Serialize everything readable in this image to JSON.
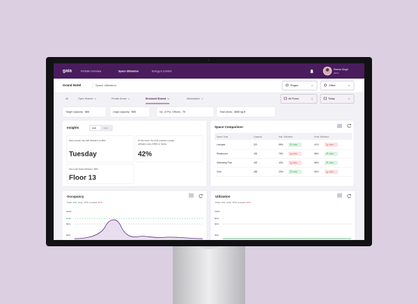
{
  "nav": {
    "logo": "gaia",
    "items": [
      "Portfolio Overview",
      "Space Utilisation",
      "Energy & Comfort"
    ],
    "active": 1,
    "user": {
      "name": "Reena Singh",
      "role": "Admin"
    }
  },
  "header": {
    "title": "Grand Hotel",
    "subtitle": "Space Utilisation",
    "filters": [
      "Region",
      "Office"
    ]
  },
  "tabs": {
    "items": [
      "All",
      "Open Shared",
      "Private Areas",
      "Enclosed Shared",
      "Workstation"
    ],
    "active": 3,
    "filters": [
      "All Floors",
      "Today"
    ]
  },
  "stats": [
    {
      "label": "Target capacity:",
      "value": "600"
    },
    {
      "label": "Legal capacity:",
      "value": "900"
    },
    {
      "label": "No. of Pvt. Offices:",
      "value": "70"
    },
    {
      "label": "Total areas:",
      "value": "4000 sq ft"
    }
  ],
  "insights": {
    "title": "Insights",
    "toggle": [
      "High",
      "Low"
    ],
    "cards": [
      {
        "text_lines": [
          "Most popular day with utilization at 80%"
        ],
        "value": "Tuesday"
      },
      {
        "text_lines": [
          "Of this week, the Club reached a target",
          "utilization rate of 80% or higher."
        ],
        "value": "42%"
      },
      {
        "text_lines": [
          "Floor with Peak utilization: 98%"
        ],
        "value": "Floor 13"
      }
    ]
  },
  "space_comparison": {
    "title": "Space Comparison",
    "columns": [
      "Space Type",
      "Capacity",
      "Avg. Utilization",
      "Peak Utilization"
    ],
    "rows": [
      {
        "space": "Lounges",
        "capacity": "321",
        "avg": "56%",
        "avg_change": "3.5%",
        "avg_trend": "up",
        "peak": "41%",
        "peak_change": "3.5%",
        "peak_trend": "down"
      },
      {
        "space": "Restaurant",
        "capacity": "432",
        "avg": "76%",
        "avg_change": "3.5%",
        "avg_trend": "down",
        "peak": "56%",
        "peak_change": "4.5%",
        "peak_trend": "up"
      },
      {
        "space": "Swimming Pool",
        "capacity": "432",
        "avg": "43%",
        "avg_change": "3.5%",
        "avg_trend": "down",
        "peak": "56%",
        "peak_change": "4.5%",
        "peak_trend": "up"
      },
      {
        "space": "Club",
        "capacity": "456",
        "avg": "23%",
        "avg_change": "4.5%",
        "avg_trend": "up",
        "peak": "94%",
        "peak_change": "3.5%",
        "peak_trend": "down"
      }
    ]
  },
  "panels": [
    {
      "title": "Occupancy",
      "summary": {
        "peak_label": "Peak:",
        "peak": "94%",
        "avg_label": "| Avg.:",
        "avg": "67%",
        "low_label": "| Lowest:",
        "low": "51%"
      },
      "axis_labels": [
        "100%",
        "Peak",
        "80%",
        "60%"
      ],
      "curve": "wave"
    },
    {
      "title": "Utilization",
      "summary": {
        "peak_label": "Peak:",
        "peak": "94%",
        "avg_label": "| Avg.:",
        "avg": "67%",
        "low_label": "| Lowest:",
        "low": "51%"
      },
      "axis_labels": [
        "100%",
        "80%",
        "60%",
        "40%"
      ],
      "curve": "flat"
    }
  ]
}
